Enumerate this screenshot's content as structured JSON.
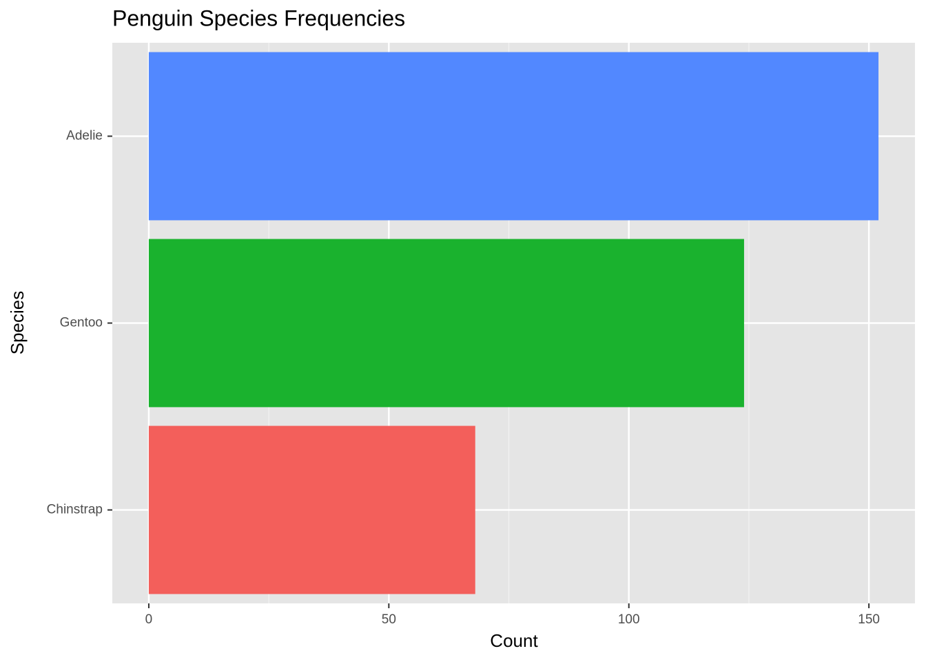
{
  "chart_data": {
    "type": "barh",
    "title": "Penguin Species Frequencies",
    "x_label": "Count",
    "y_label": "Species",
    "categories": [
      "Adelie",
      "Gentoo",
      "Chinstrap"
    ],
    "values": [
      152,
      124,
      68
    ],
    "colors": [
      "#5288ff",
      "#1ab22e",
      "#f35f5b"
    ],
    "xlim": [
      -7.6,
      159.6
    ],
    "xticks": [
      0,
      50,
      100,
      150
    ],
    "xminor": [
      25,
      75,
      125
    ],
    "grid": true
  }
}
